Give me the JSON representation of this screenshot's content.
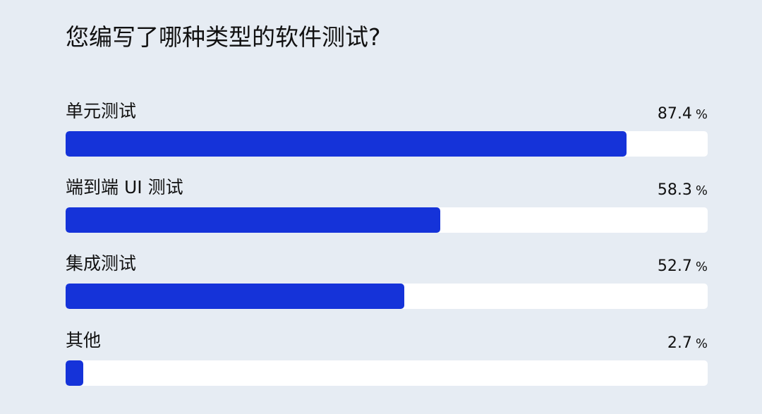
{
  "chart_data": {
    "type": "bar",
    "orientation": "horizontal",
    "title": "您编写了哪种类型的软件测试?",
    "categories": [
      "单元测试",
      "端到端 UI 测试",
      "集成测试",
      "其他"
    ],
    "values": [
      87.4,
      58.3,
      52.7,
      2.7
    ],
    "unit": "%",
    "xlim": [
      0,
      100
    ],
    "grid": false,
    "colors": {
      "bar": "#1533d9",
      "track": "#ffffff",
      "background": "#e6ecf3"
    }
  }
}
